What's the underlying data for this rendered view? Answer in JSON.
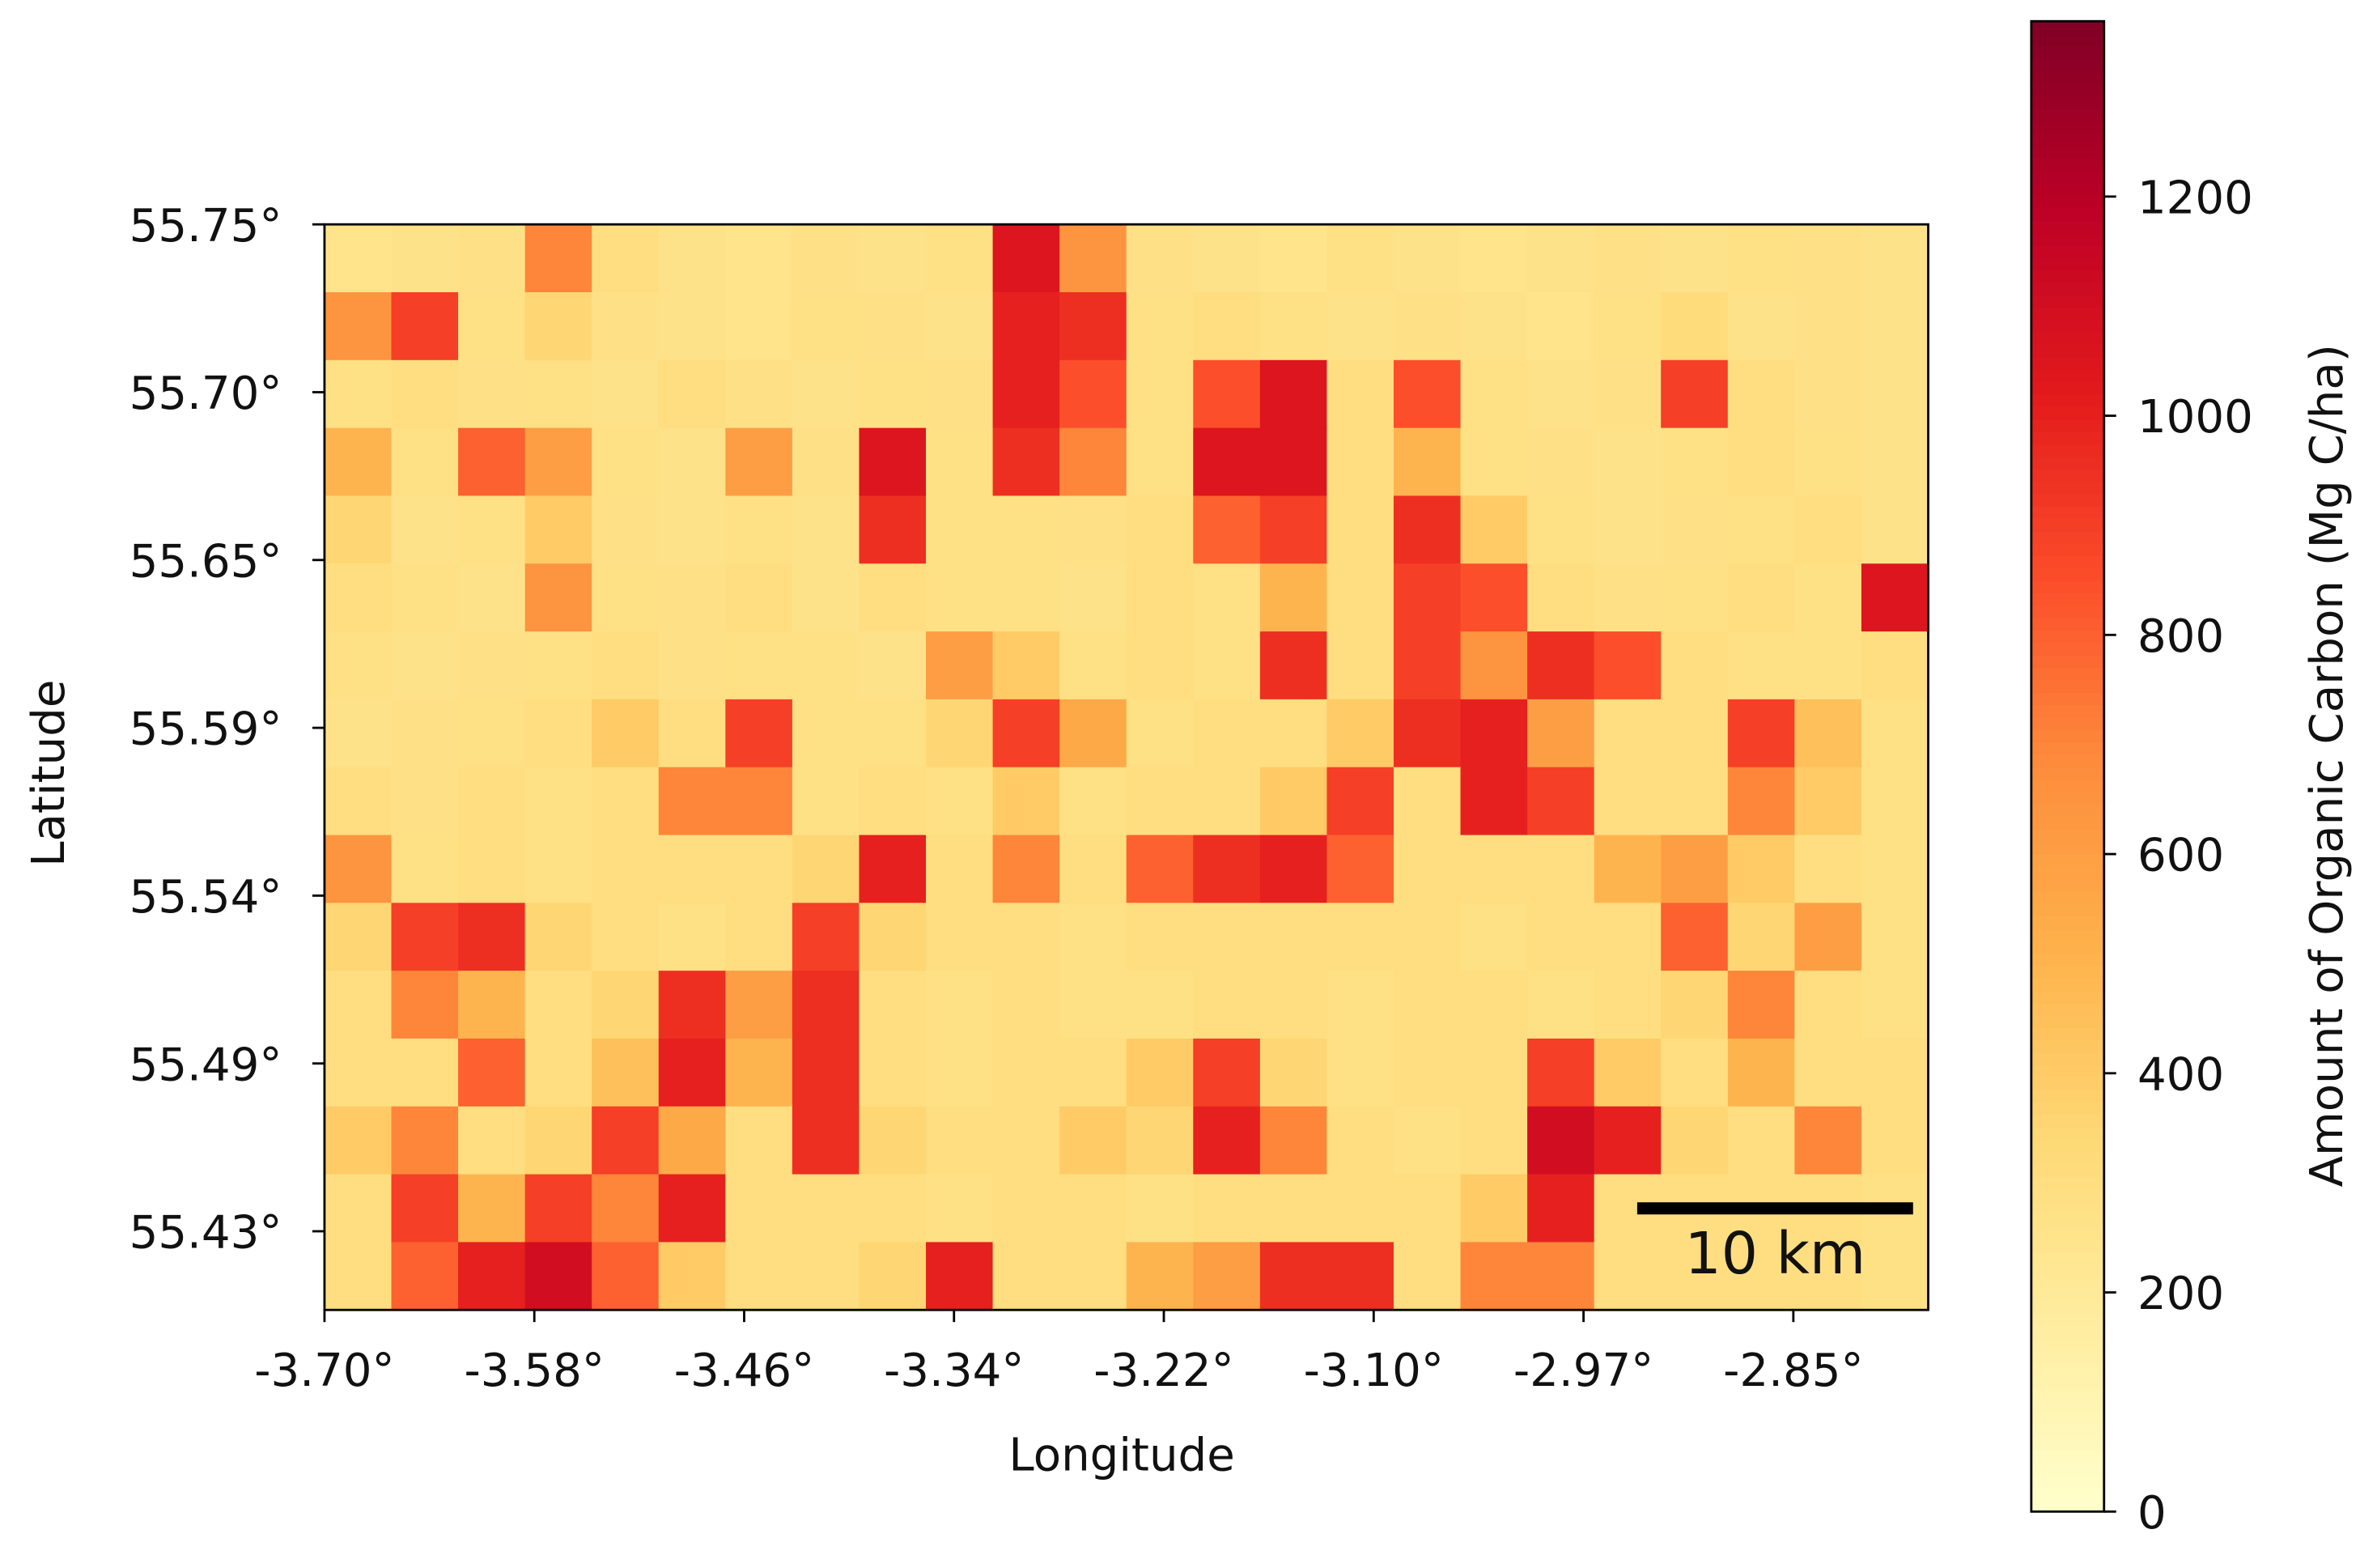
{
  "chart_data": {
    "type": "heatmap",
    "x_label": "Longitude",
    "y_label": "Latitude",
    "xlim": [
      -3.7,
      -2.776
    ],
    "ylim": [
      55.4103,
      55.7525
    ],
    "xticks": [
      {
        "value": -3.7,
        "label": "-3.70°"
      },
      {
        "value": -3.5791,
        "label": "-3.58°"
      },
      {
        "value": -3.4582,
        "label": "-3.46°"
      },
      {
        "value": -3.3373,
        "label": "-3.34°"
      },
      {
        "value": -3.2164,
        "label": "-3.22°"
      },
      {
        "value": -3.0955,
        "label": "-3.10°"
      },
      {
        "value": -2.9746,
        "label": "-2.97°"
      },
      {
        "value": -2.8537,
        "label": "-2.85°"
      }
    ],
    "yticks": [
      {
        "value": 55.7525,
        "label": "55.75°"
      },
      {
        "value": 55.6996,
        "label": "55.70°"
      },
      {
        "value": 55.6467,
        "label": "55.65°"
      },
      {
        "value": 55.5938,
        "label": "55.59°"
      },
      {
        "value": 55.5409,
        "label": "55.54°"
      },
      {
        "value": 55.488,
        "label": "55.49°"
      },
      {
        "value": 55.4351,
        "label": "55.43°"
      }
    ],
    "colors": [
      "#ffffcc",
      "#ffeda0",
      "#fed976",
      "#feb24c",
      "#fd8d3c",
      "#fc4e2a",
      "#e31a1c",
      "#bd0026",
      "#800026"
    ],
    "colorbar": {
      "label": "Amount of Organic Carbon (Mg C/ha)",
      "lim": [
        0,
        1360
      ],
      "ticks": [
        0,
        200,
        400,
        600,
        800,
        1000,
        1200
      ]
    },
    "scale_bar": {
      "label": "10 km"
    },
    "z": [
      [
        250,
        260,
        270,
        700,
        300,
        260,
        250,
        270,
        260,
        280,
        1050,
        650,
        270,
        260,
        250,
        280,
        260,
        250,
        260,
        270,
        260,
        280,
        270,
        260
      ],
      [
        650,
        900,
        280,
        350,
        270,
        260,
        250,
        280,
        270,
        260,
        1000,
        950,
        280,
        300,
        280,
        260,
        270,
        260,
        250,
        280,
        320,
        260,
        270,
        260
      ],
      [
        280,
        300,
        270,
        280,
        260,
        300,
        270,
        260,
        280,
        270,
        1000,
        850,
        280,
        850,
        1050,
        300,
        850,
        280,
        260,
        270,
        900,
        300,
        270,
        260
      ],
      [
        500,
        280,
        800,
        600,
        280,
        260,
        600,
        270,
        1050,
        280,
        950,
        700,
        280,
        1050,
        1050,
        300,
        500,
        280,
        270,
        260,
        280,
        300,
        280,
        260
      ],
      [
        350,
        260,
        280,
        400,
        270,
        260,
        280,
        260,
        950,
        280,
        280,
        270,
        300,
        800,
        900,
        300,
        950,
        400,
        280,
        260,
        270,
        280,
        300,
        260
      ],
      [
        300,
        280,
        260,
        650,
        280,
        270,
        300,
        260,
        300,
        280,
        280,
        260,
        300,
        280,
        500,
        300,
        900,
        850,
        300,
        270,
        280,
        300,
        280,
        1050
      ],
      [
        280,
        260,
        270,
        280,
        300,
        270,
        280,
        280,
        260,
        600,
        400,
        280,
        300,
        280,
        950,
        300,
        900,
        650,
        950,
        850,
        300,
        280,
        280,
        300
      ],
      [
        260,
        270,
        280,
        300,
        400,
        300,
        900,
        280,
        280,
        350,
        900,
        550,
        280,
        300,
        300,
        400,
        950,
        1000,
        600,
        300,
        300,
        900,
        450,
        280
      ],
      [
        300,
        270,
        300,
        280,
        300,
        700,
        700,
        280,
        300,
        280,
        400,
        280,
        300,
        300,
        400,
        900,
        300,
        1000,
        900,
        300,
        300,
        700,
        400,
        280
      ],
      [
        650,
        280,
        300,
        280,
        300,
        300,
        300,
        350,
        1000,
        300,
        700,
        300,
        800,
        950,
        1000,
        800,
        300,
        300,
        300,
        500,
        600,
        400,
        300,
        280
      ],
      [
        350,
        900,
        950,
        350,
        300,
        280,
        300,
        900,
        350,
        300,
        300,
        280,
        300,
        300,
        300,
        300,
        300,
        280,
        300,
        300,
        800,
        350,
        600,
        280
      ],
      [
        300,
        700,
        500,
        300,
        350,
        950,
        600,
        950,
        300,
        280,
        300,
        280,
        280,
        300,
        300,
        280,
        300,
        300,
        280,
        300,
        350,
        700,
        300,
        280
      ],
      [
        300,
        300,
        800,
        300,
        450,
        1000,
        500,
        950,
        300,
        280,
        300,
        300,
        400,
        900,
        350,
        280,
        300,
        300,
        900,
        400,
        300,
        500,
        300,
        300
      ],
      [
        400,
        700,
        300,
        350,
        900,
        550,
        300,
        950,
        350,
        300,
        300,
        400,
        350,
        1000,
        700,
        300,
        280,
        300,
        1100,
        1000,
        350,
        300,
        700,
        300
      ],
      [
        300,
        900,
        500,
        900,
        700,
        1000,
        300,
        300,
        300,
        280,
        300,
        300,
        280,
        300,
        300,
        300,
        300,
        400,
        1000,
        300,
        300,
        300,
        300,
        280
      ],
      [
        300,
        800,
        1000,
        1100,
        800,
        400,
        300,
        300,
        350,
        1000,
        300,
        300,
        500,
        600,
        950,
        950,
        300,
        700,
        700,
        300,
        300,
        300,
        300,
        280
      ]
    ]
  }
}
